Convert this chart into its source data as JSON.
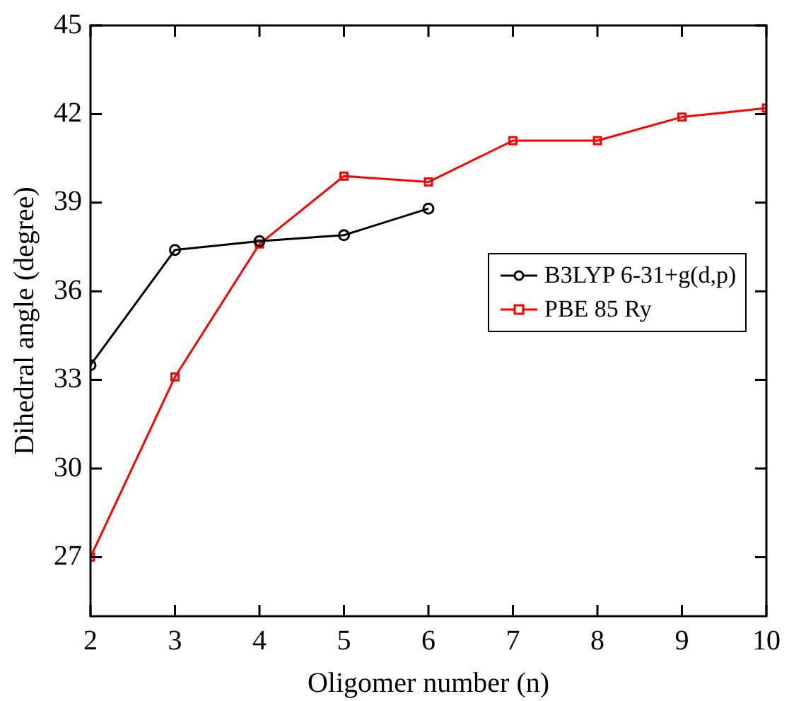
{
  "chart_data": {
    "type": "line",
    "xlabel": "Oligomer number (n)",
    "ylabel": "Dihedral angle (degree)",
    "x": [
      2,
      3,
      4,
      5,
      6,
      7,
      8,
      9,
      10
    ],
    "xlim": [
      2,
      10
    ],
    "xticks": [
      2,
      3,
      4,
      5,
      6,
      7,
      8,
      9,
      10
    ],
    "ylim": [
      25,
      45
    ],
    "yticks": [
      27,
      30,
      33,
      36,
      39,
      42,
      45
    ],
    "grid": false,
    "legend": "right",
    "line_style": "solid",
    "series": [
      {
        "name": "B3LYP 6-31+g(d,p)",
        "color": "#000000",
        "marker": "circle",
        "values": [
          33.5,
          37.4,
          37.7,
          37.9,
          38.8,
          null,
          null,
          null,
          null
        ]
      },
      {
        "name": "PBE 85 Ry",
        "color": "#ff0000",
        "marker": "square",
        "values": [
          27.0,
          33.1,
          37.6,
          39.9,
          39.7,
          41.1,
          41.1,
          41.9,
          42.2
        ]
      }
    ]
  }
}
